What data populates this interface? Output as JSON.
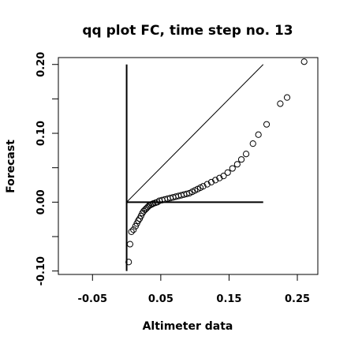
{
  "chart_data": {
    "type": "scatter",
    "title": "qq plot FC, time step no. 13",
    "xlabel": "Altimeter data",
    "ylabel": "Forecast",
    "xlim": [
      -0.1,
      0.28
    ],
    "ylim": [
      -0.105,
      0.21
    ],
    "xticks": [
      -0.05,
      0.05,
      0.15,
      0.25
    ],
    "xtick_labels": [
      "-0.05",
      "0.05",
      "0.15",
      "0.25"
    ],
    "yticks": [
      -0.1,
      -0.05,
      0.0,
      0.05,
      0.1,
      0.15,
      0.2
    ],
    "ytick_labels": [
      "-0.10",
      "",
      "0.00",
      "",
      "0.10",
      "",
      "0.20"
    ],
    "grid": false,
    "points": [
      {
        "x": 0.003,
        "y": -0.087
      },
      {
        "x": 0.005,
        "y": -0.061
      },
      {
        "x": 0.007,
        "y": -0.043
      },
      {
        "x": 0.01,
        "y": -0.04
      },
      {
        "x": 0.013,
        "y": -0.035
      },
      {
        "x": 0.015,
        "y": -0.031
      },
      {
        "x": 0.017,
        "y": -0.027
      },
      {
        "x": 0.019,
        "y": -0.024
      },
      {
        "x": 0.021,
        "y": -0.02
      },
      {
        "x": 0.023,
        "y": -0.016
      },
      {
        "x": 0.025,
        "y": -0.013
      },
      {
        "x": 0.027,
        "y": -0.011
      },
      {
        "x": 0.029,
        "y": -0.009
      },
      {
        "x": 0.031,
        "y": -0.007
      },
      {
        "x": 0.033,
        "y": -0.005
      },
      {
        "x": 0.035,
        "y": -0.004
      },
      {
        "x": 0.037,
        "y": -0.003
      },
      {
        "x": 0.039,
        "y": -0.002
      },
      {
        "x": 0.042,
        "y": -0.001
      },
      {
        "x": 0.045,
        "y": 0.0
      },
      {
        "x": 0.048,
        "y": 0.002
      },
      {
        "x": 0.052,
        "y": 0.003
      },
      {
        "x": 0.056,
        "y": 0.004
      },
      {
        "x": 0.06,
        "y": 0.005
      },
      {
        "x": 0.064,
        "y": 0.006
      },
      {
        "x": 0.068,
        "y": 0.007
      },
      {
        "x": 0.072,
        "y": 0.008
      },
      {
        "x": 0.076,
        "y": 0.009
      },
      {
        "x": 0.08,
        "y": 0.01
      },
      {
        "x": 0.084,
        "y": 0.011
      },
      {
        "x": 0.088,
        "y": 0.012
      },
      {
        "x": 0.092,
        "y": 0.013
      },
      {
        "x": 0.096,
        "y": 0.015
      },
      {
        "x": 0.1,
        "y": 0.017
      },
      {
        "x": 0.104,
        "y": 0.019
      },
      {
        "x": 0.108,
        "y": 0.021
      },
      {
        "x": 0.112,
        "y": 0.023
      },
      {
        "x": 0.118,
        "y": 0.026
      },
      {
        "x": 0.124,
        "y": 0.029
      },
      {
        "x": 0.13,
        "y": 0.032
      },
      {
        "x": 0.136,
        "y": 0.035
      },
      {
        "x": 0.142,
        "y": 0.038
      },
      {
        "x": 0.148,
        "y": 0.043
      },
      {
        "x": 0.155,
        "y": 0.049
      },
      {
        "x": 0.162,
        "y": 0.055
      },
      {
        "x": 0.168,
        "y": 0.062
      },
      {
        "x": 0.175,
        "y": 0.07
      },
      {
        "x": 0.185,
        "y": 0.085
      },
      {
        "x": 0.193,
        "y": 0.098
      },
      {
        "x": 0.205,
        "y": 0.113
      },
      {
        "x": 0.225,
        "y": 0.143
      },
      {
        "x": 0.235,
        "y": 0.152
      },
      {
        "x": 0.26,
        "y": 0.204
      }
    ],
    "reference_lines": [
      {
        "x": [
          0.0,
          0.2
        ],
        "y": [
          0.0,
          0.2
        ]
      },
      {
        "x": [
          0.0,
          0.2
        ],
        "y": [
          0.0,
          0.0
        ]
      },
      {
        "x": [
          0.0,
          0.0
        ],
        "y": [
          -0.1,
          0.2
        ]
      }
    ]
  }
}
